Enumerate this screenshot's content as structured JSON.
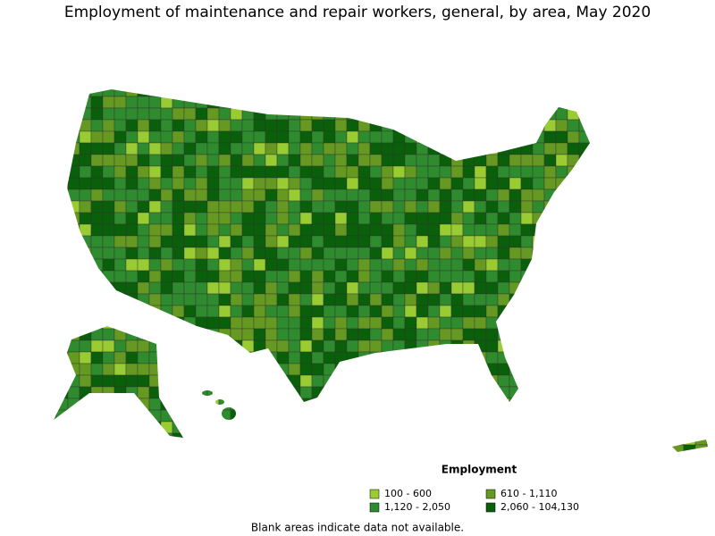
{
  "title": "Employment of maintenance and repair workers, general, by area, May 2020",
  "legend": {
    "title": "Employment",
    "items": [
      {
        "label": "100 - 600",
        "color": "#99cc33"
      },
      {
        "label": "610 - 1,110",
        "color": "#669922"
      },
      {
        "label": "1,120 - 2,050",
        "color": "#2e8b2e"
      },
      {
        "label": "2,060 - 104,130",
        "color": "#0a5f0a"
      }
    ]
  },
  "note": "Blank areas indicate data not available."
}
